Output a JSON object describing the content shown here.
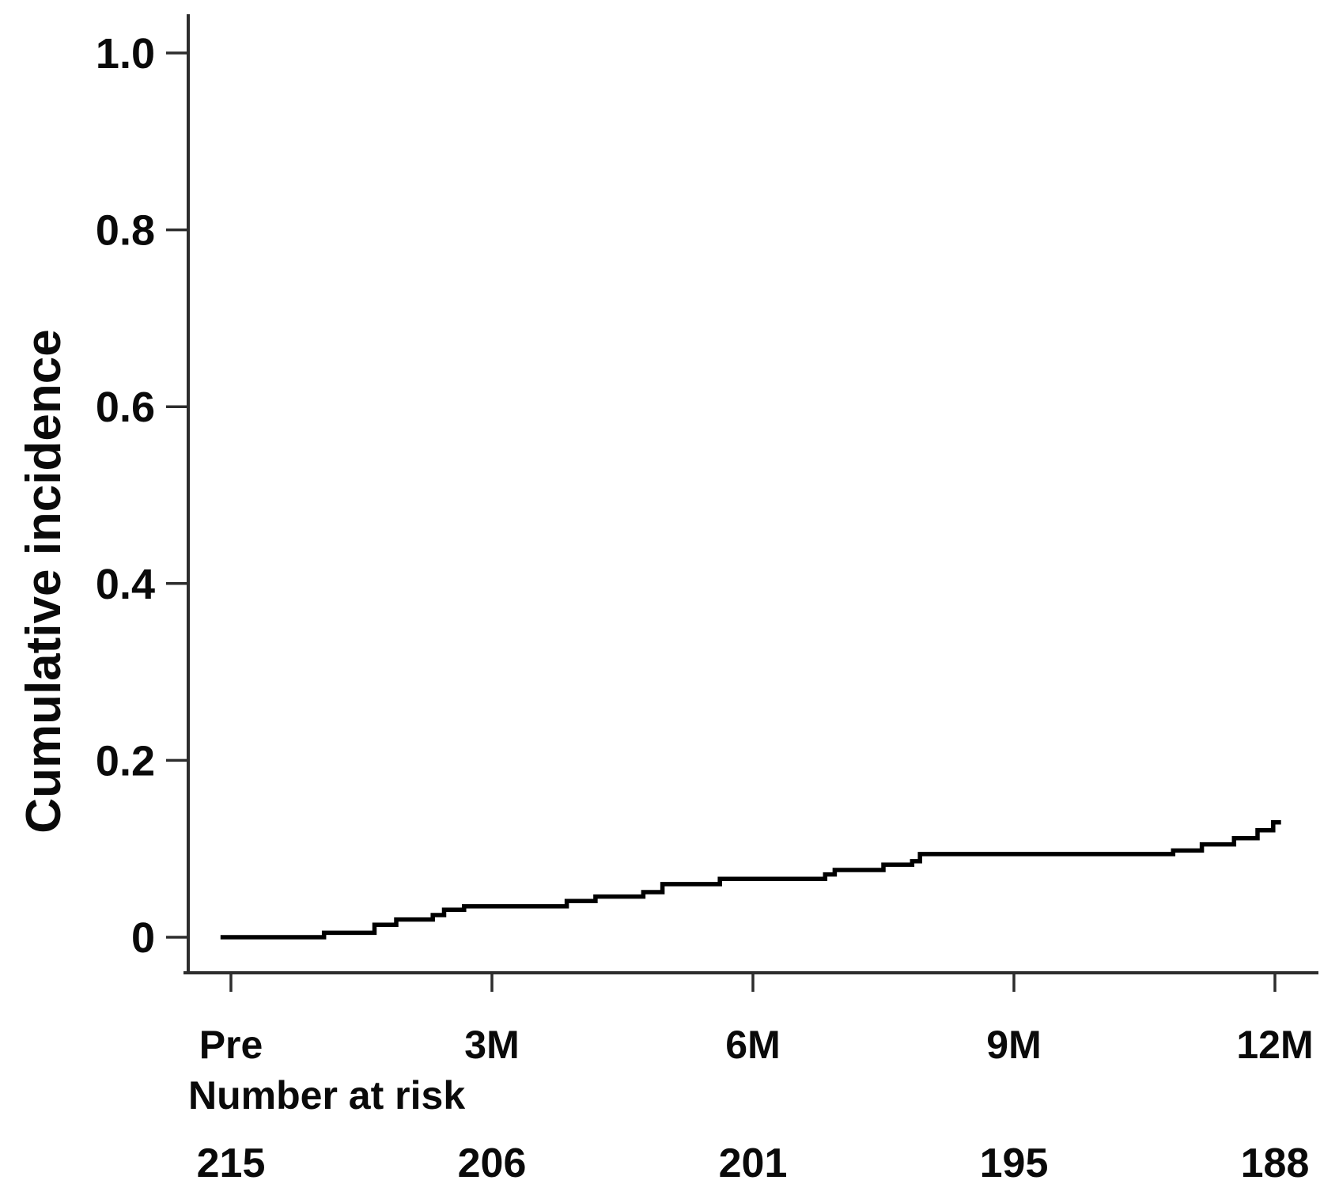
{
  "figure": {
    "background_color": "#ffffff",
    "text_color": "#0a0a0a",
    "axis_color": "#2d2d2d"
  },
  "chart_data": {
    "type": "line",
    "line_style": "step",
    "title": "",
    "xlabel": "",
    "ylabel": "Cumulative incidence",
    "grid": false,
    "legend": "none",
    "ylim": [
      0,
      1.0
    ],
    "xlim_months": [
      -0.6,
      12.5
    ],
    "y_tick_labels": [
      "1.0",
      "0.8",
      "0.6",
      "0.4",
      "0.2",
      "0"
    ],
    "y_tick_values": [
      1.0,
      0.8,
      0.6,
      0.4,
      0.2,
      0
    ],
    "x_tick_labels": [
      "Pre",
      "3M",
      "6M",
      "9M",
      "12M"
    ],
    "x_tick_months": [
      0,
      3,
      6,
      9,
      12
    ],
    "number_at_risk_label": "Number at risk",
    "number_at_risk": [
      "215",
      "206",
      "201",
      "195",
      "188"
    ],
    "curve_color": "#000000",
    "series": [
      {
        "name": "Cumulative incidence",
        "start": {
          "t": -0.12,
          "v": 0
        },
        "end_t": 12.07,
        "steps": [
          [
            1.07,
            0.005
          ],
          [
            1.65,
            0.014
          ],
          [
            1.9,
            0.02
          ],
          [
            2.32,
            0.025
          ],
          [
            2.45,
            0.031
          ],
          [
            2.68,
            0.035
          ],
          [
            3.86,
            0.041
          ],
          [
            4.19,
            0.046
          ],
          [
            4.74,
            0.051
          ],
          [
            4.96,
            0.06
          ],
          [
            5.62,
            0.066
          ],
          [
            6.83,
            0.071
          ],
          [
            6.94,
            0.076
          ],
          [
            7.5,
            0.082
          ],
          [
            7.83,
            0.086
          ],
          [
            7.92,
            0.094
          ],
          [
            10.83,
            0.098
          ],
          [
            11.16,
            0.105
          ],
          [
            11.53,
            0.112
          ],
          [
            11.8,
            0.121
          ],
          [
            11.98,
            0.13
          ]
        ]
      }
    ]
  }
}
